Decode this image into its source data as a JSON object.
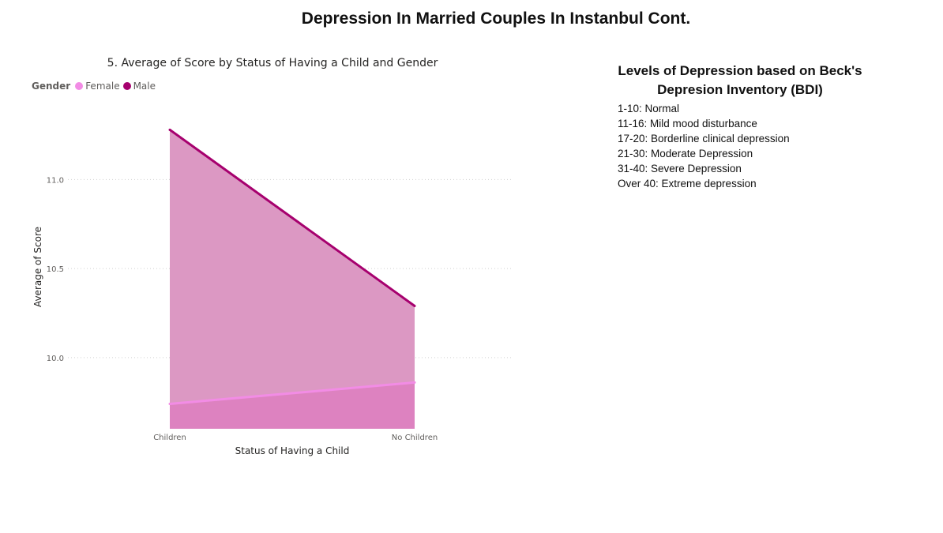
{
  "page": {
    "title": "Depression In Married Couples In Instanbul Cont."
  },
  "legend": {
    "title": "Gender"
  },
  "info": {
    "title_line1": "Levels of Depression based on Beck's",
    "title_line2": "Depresion Inventory (BDI)",
    "levels": [
      "1-10: Normal",
      "11-16: Mild mood disturbance",
      "17-20: Borderline clinical depression",
      "21-30: Moderate Depression",
      "31-40: Severe Depression",
      "Over 40: Extreme depression"
    ]
  },
  "chart_data": {
    "type": "area",
    "title": "5. Average of Score by Status of Having a Child and Gender",
    "xlabel": "Status of Having a Child",
    "ylabel": "Average of Score",
    "categories": [
      "Children",
      "No Children"
    ],
    "series": [
      {
        "name": "Female",
        "values": [
          9.74,
          9.86
        ],
        "color": "#f28ce5"
      },
      {
        "name": "Male",
        "values": [
          11.28,
          10.29
        ],
        "color": "#a6006e"
      }
    ],
    "ylim": [
      9.6,
      11.45
    ],
    "yticks": [
      10.0,
      10.5,
      11.0
    ],
    "ytick_labels": [
      "10.0",
      "10.5",
      "11.0"
    ],
    "stacked": false,
    "grid": true,
    "legend_position": "top-left"
  }
}
